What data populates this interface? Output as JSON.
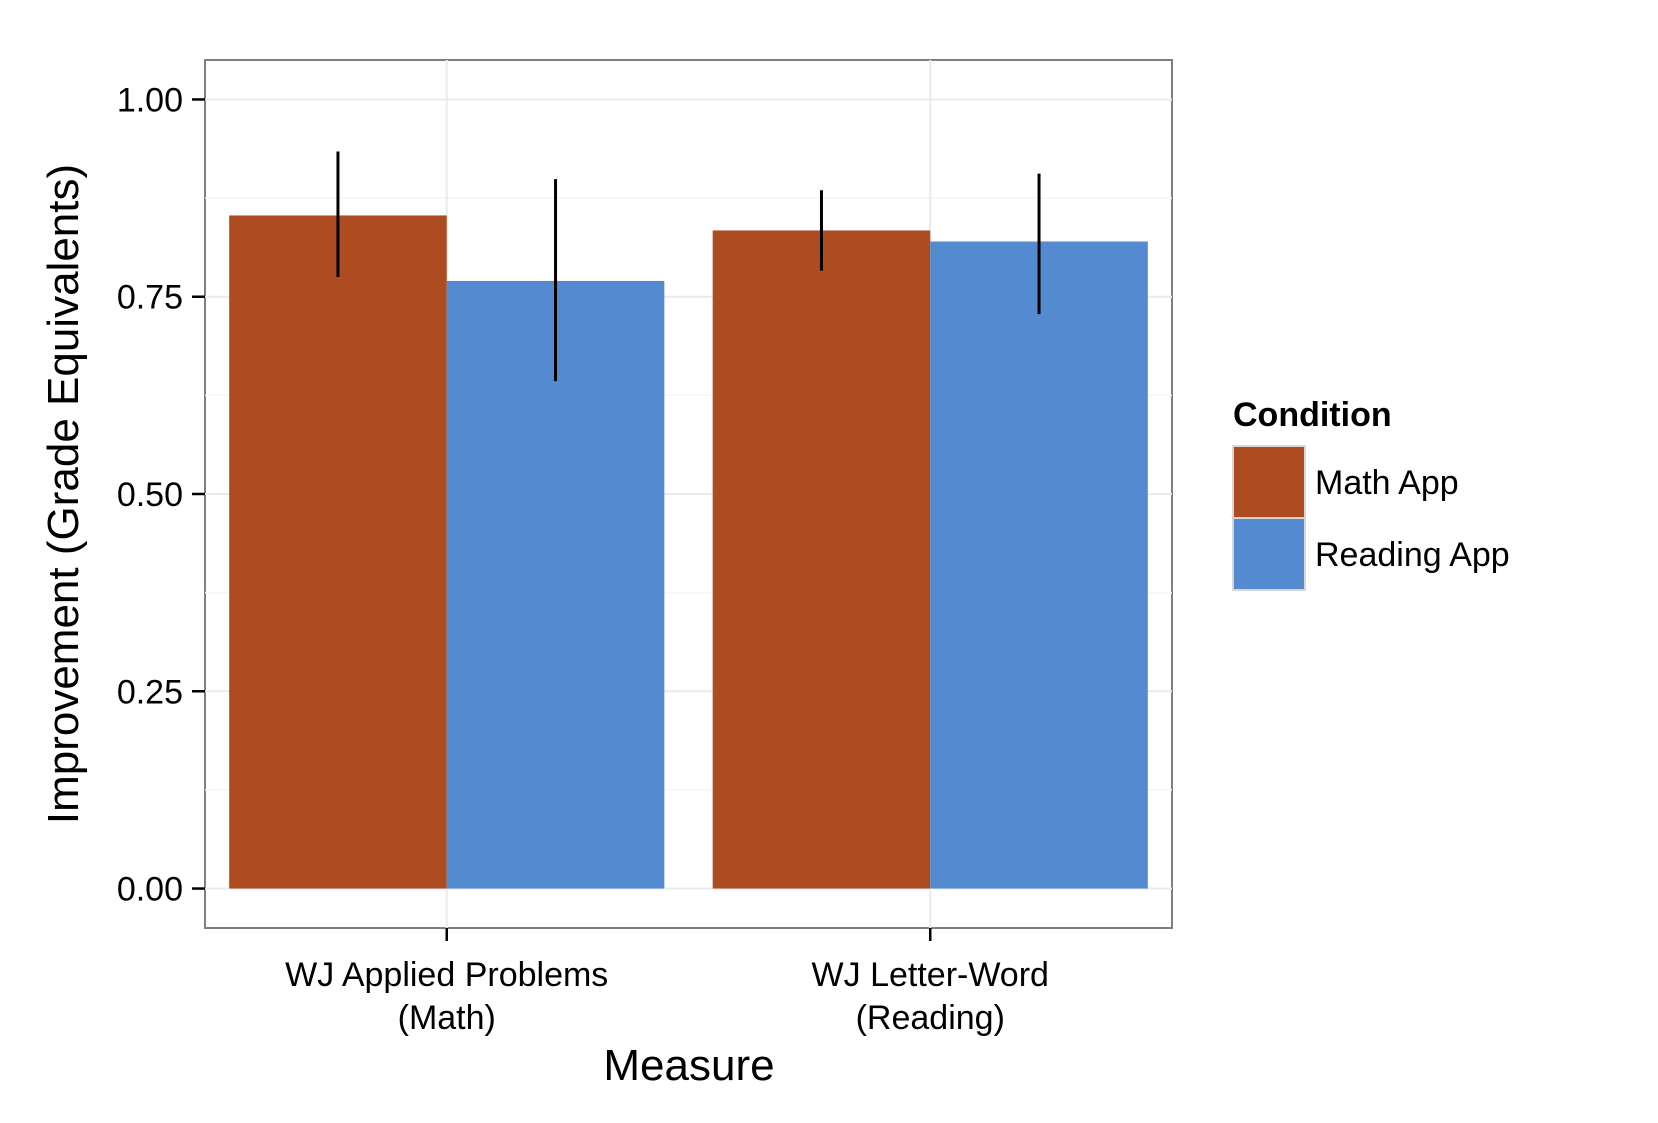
{
  "chart_data": {
    "type": "bar",
    "xlabel": "Measure",
    "ylabel": "Improvement (Grade Equivalents)",
    "categories": [
      [
        "WJ Applied Problems",
        "(Math)"
      ],
      [
        "WJ Letter-Word",
        "(Reading)"
      ]
    ],
    "series": [
      {
        "name": "Math App",
        "color": "#ae4c21",
        "values": [
          0.853,
          0.834
        ],
        "error_low": [
          0.775,
          0.783
        ],
        "error_high": [
          0.934,
          0.885
        ]
      },
      {
        "name": "Reading App",
        "color": "#548bd0",
        "values": [
          0.77,
          0.82
        ],
        "error_low": [
          0.643,
          0.728
        ],
        "error_high": [
          0.899,
          0.906
        ]
      }
    ],
    "ylim": [
      -0.05,
      1.05
    ],
    "yticks": [
      0,
      0.25,
      0.5,
      0.75,
      1
    ],
    "ytick_labels": [
      "0.00",
      "0.25",
      "0.50",
      "0.75",
      "1.00"
    ],
    "grid": true,
    "legend": {
      "title": "Condition",
      "position": "right"
    }
  }
}
